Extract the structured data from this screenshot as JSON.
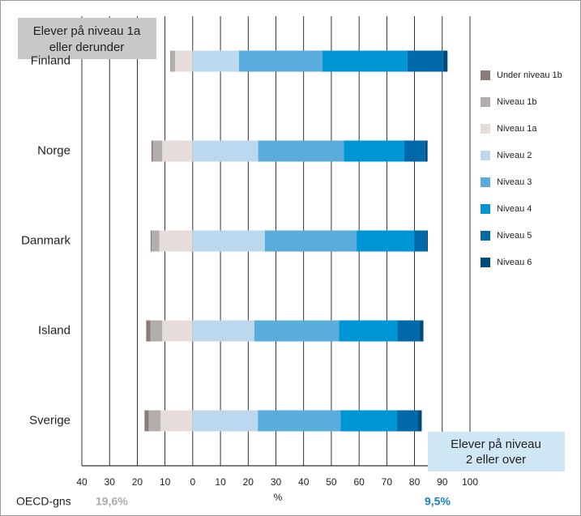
{
  "chart_data": {
    "type": "bar",
    "orientation": "horizontal",
    "categories": [
      "Finland",
      "Norge",
      "Danmark",
      "Island",
      "Sverige"
    ],
    "series": [
      {
        "name": "Under niveau 1b",
        "color": "#8c7b7b",
        "values": [
          -0.2,
          -0.5,
          -0.4,
          -1.5,
          -1.5
        ]
      },
      {
        "name": "Niveau 1b",
        "color": "#b3aeae",
        "values": [
          -1.5,
          -3.4,
          -2.7,
          -4.3,
          -4.3
        ]
      },
      {
        "name": "Niveau 1a",
        "color": "#e6dcdc",
        "values": [
          -6.4,
          -11.0,
          -12.1,
          -11.0,
          -11.6
        ]
      },
      {
        "name": "Niveau 2",
        "color": "#bcd8ef",
        "values": [
          16.7,
          23.6,
          26.0,
          22.2,
          23.5
        ]
      },
      {
        "name": "Niveau 3",
        "color": "#5aacdc",
        "values": [
          30.1,
          30.9,
          33.1,
          30.6,
          29.8
        ]
      },
      {
        "name": "Niveau 4",
        "color": "#0096d6",
        "values": [
          30.6,
          21.8,
          20.9,
          21.0,
          20.3
        ]
      },
      {
        "name": "Niveau 5",
        "color": "#0069aa",
        "values": [
          12.9,
          7.6,
          4.4,
          8.1,
          7.7
        ]
      },
      {
        "name": "Niveau 6",
        "color": "#004a7c",
        "values": [
          1.6,
          0.8,
          0.4,
          1.3,
          1.3
        ]
      }
    ],
    "xlabel": "%",
    "xlim": [
      -40,
      100
    ],
    "xticks": [
      {
        "value": -40,
        "label": "40"
      },
      {
        "value": -30,
        "label": "30"
      },
      {
        "value": -20,
        "label": "20"
      },
      {
        "value": -10,
        "label": "10"
      },
      0,
      10,
      20,
      30,
      40,
      50,
      60,
      70,
      80,
      90,
      100
    ],
    "grid": true,
    "legend": "right",
    "left_box": [
      "Elever på niveau 1a",
      "eller derunder"
    ],
    "right_box": [
      "Elever på niveau",
      "2 eller over"
    ],
    "footer": {
      "label": "OECD-gns",
      "left": "19,6%",
      "right": "9,5%"
    }
  }
}
